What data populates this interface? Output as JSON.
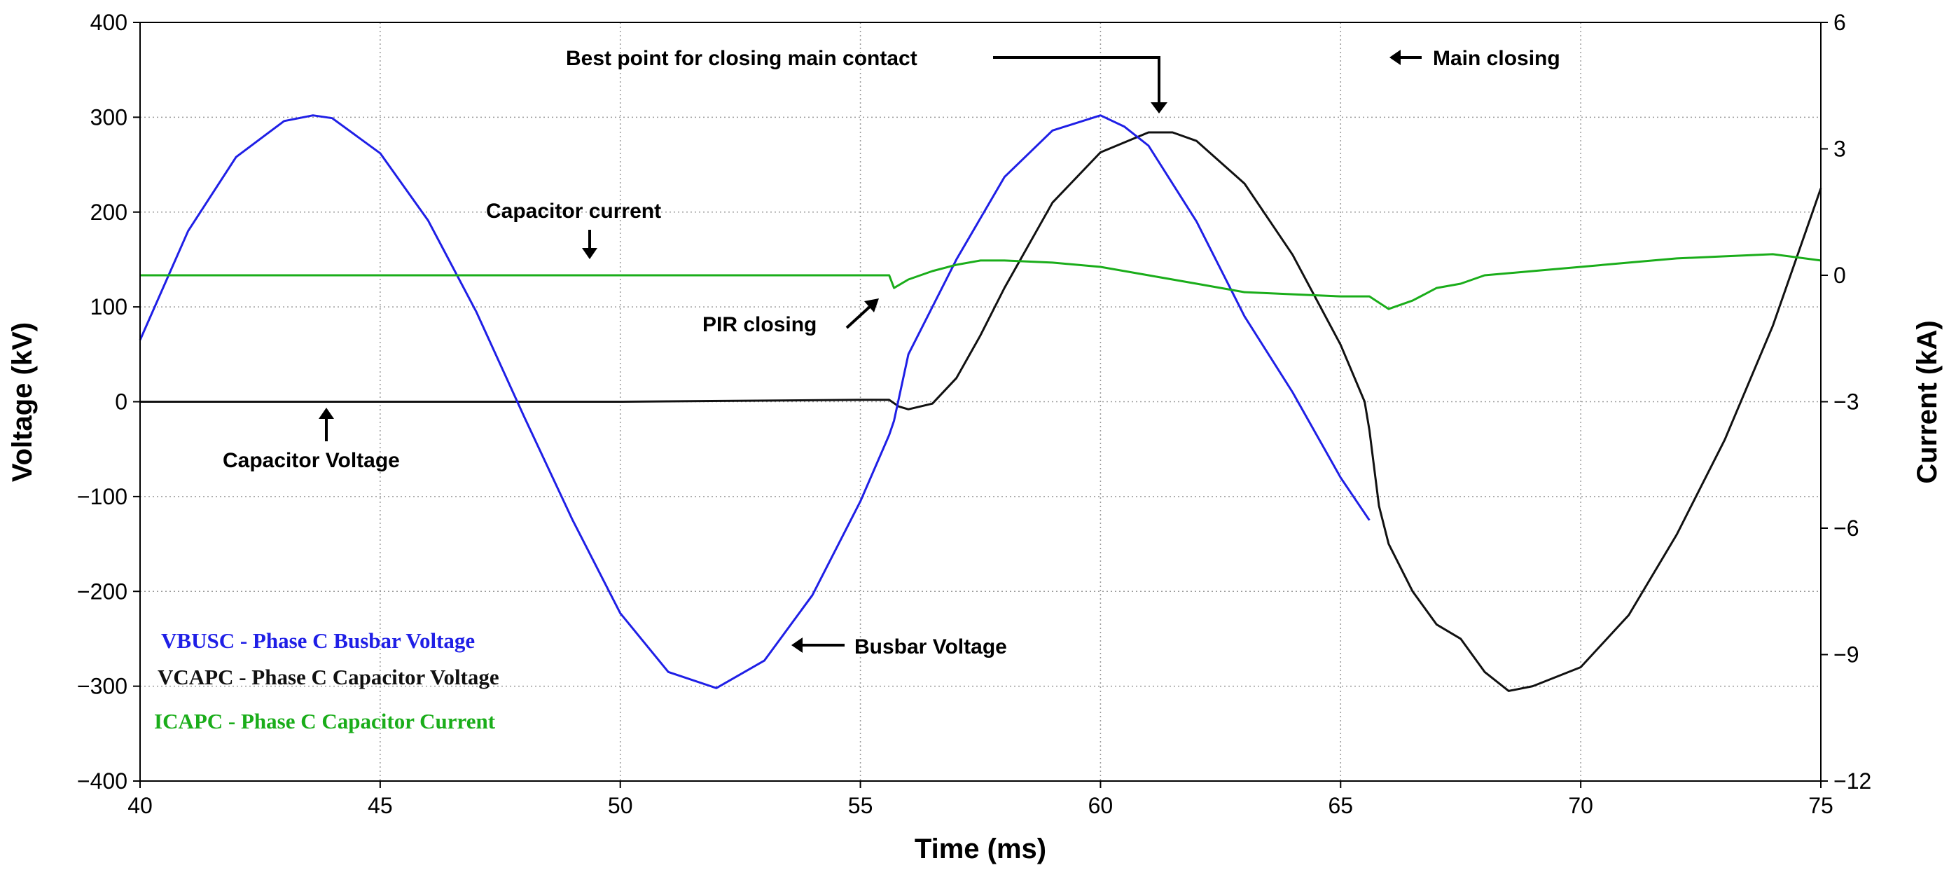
{
  "chart_data": {
    "type": "line",
    "title": "",
    "xlabel": "Time (ms)",
    "ylabel": "Voltage (kV)",
    "y2label": "Current (kA)",
    "xlim": [
      40,
      75
    ],
    "ylim": [
      -400,
      400
    ],
    "y2lim": [
      -12,
      6
    ],
    "x_ticks": [
      40,
      45,
      50,
      55,
      60,
      65,
      70,
      75
    ],
    "x_tick_labels": [
      "40",
      "45",
      "50",
      "55",
      "60",
      "65",
      "70",
      "75"
    ],
    "y_ticks": [
      400,
      300,
      200,
      100,
      0,
      -100,
      -200,
      -300,
      -400
    ],
    "y_tick_labels": [
      "400",
      "300",
      "200",
      "100",
      "0",
      "−100",
      "−200",
      "−300",
      "−400"
    ],
    "y2_ticks": [
      6,
      3,
      0,
      -3,
      -6,
      -9,
      -12
    ],
    "y2_tick_labels": [
      "6",
      "3",
      "0",
      "−3",
      "−6",
      "−9",
      "−12"
    ],
    "grid": true,
    "legend_position": "bottom-left",
    "series": [
      {
        "name": "VBUSC - Phase C Busbar Voltage",
        "color": "#1f1fe6",
        "axis": "left",
        "x": [
          40,
          41,
          42,
          43,
          43.6,
          44,
          45,
          46,
          47,
          48,
          49,
          50,
          51,
          52,
          53,
          54,
          55,
          55.6,
          55.7,
          56,
          57,
          58,
          59,
          60,
          60.5,
          61,
          62,
          62.8,
          63,
          64,
          65,
          65.6
        ],
        "y": [
          65,
          180,
          258,
          296,
          302,
          299,
          262,
          191,
          95,
          -16,
          -124,
          -223,
          -285,
          -302,
          -273,
          -204,
          -105,
          -35,
          -20,
          50,
          150,
          237,
          286,
          302,
          290,
          270,
          190,
          110,
          90,
          10,
          -80,
          -125
        ]
      },
      {
        "name": "VCAPC - Phase C Capacitor Voltage",
        "color": "#111111",
        "axis": "left",
        "x": [
          40,
          45,
          50,
          55,
          55.6,
          55.8,
          56,
          56.5,
          57,
          57.5,
          58,
          59,
          60,
          61,
          61.5,
          62,
          63,
          64,
          65,
          65.5,
          65.6,
          65.8,
          66,
          66.5,
          67,
          67.5,
          68,
          68.5,
          69,
          70,
          71,
          72,
          73,
          74,
          75
        ],
        "y": [
          0,
          0,
          0,
          2,
          2,
          -5,
          -8,
          -2,
          25,
          70,
          120,
          210,
          263,
          284,
          284,
          275,
          230,
          155,
          60,
          0,
          -30,
          -110,
          -150,
          -200,
          -235,
          -250,
          -285,
          -305,
          -300,
          -280,
          -225,
          -140,
          -40,
          80,
          225
        ]
      },
      {
        "name": "ICAPC - Phase C Capacitor Current",
        "color": "#1aad1a",
        "axis": "right",
        "x": [
          40,
          45,
          50,
          55,
          55.6,
          55.7,
          56,
          56.5,
          57,
          57.5,
          58,
          59,
          60,
          61,
          62,
          63,
          64,
          65,
          65.6,
          66,
          66.5,
          67,
          67.5,
          68,
          69,
          70,
          71,
          72,
          73,
          74,
          75
        ],
        "y": [
          0,
          0,
          0,
          0,
          0,
          -0.3,
          -0.1,
          0.1,
          0.25,
          0.35,
          0.35,
          0.3,
          0.2,
          0.0,
          -0.2,
          -0.4,
          -0.45,
          -0.5,
          -0.5,
          -0.8,
          -0.6,
          -0.3,
          -0.2,
          0.0,
          0.1,
          0.2,
          0.3,
          0.4,
          0.45,
          0.5,
          0.35
        ]
      }
    ],
    "annotations": [
      {
        "text": "Best point for closing main contact"
      },
      {
        "text": "Main closing"
      },
      {
        "text": "Capacitor current"
      },
      {
        "text": "PIR closing"
      },
      {
        "text": "Capacitor Voltage"
      },
      {
        "text": "Busbar Voltage"
      }
    ]
  }
}
